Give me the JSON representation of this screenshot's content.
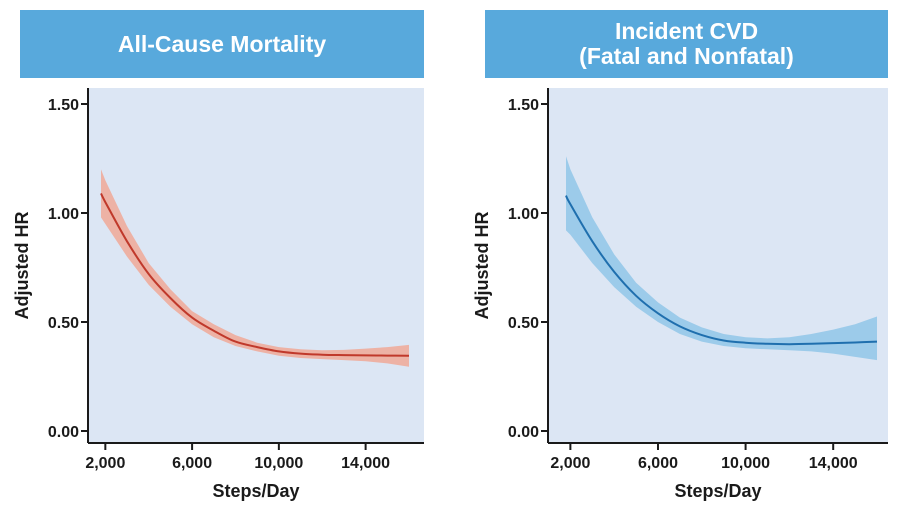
{
  "chart_data": [
    {
      "type": "line",
      "title": "All-Cause Mortality",
      "xlabel": "Steps/Day",
      "ylabel": "Adjusted HR",
      "xlim": [
        1200,
        16600
      ],
      "ylim": [
        0,
        1.5
      ],
      "xticks": [
        2000,
        6000,
        10000,
        14000
      ],
      "xtick_labels": [
        "2,000",
        "6,000",
        "10,000",
        "14,000"
      ],
      "yticks": [
        0,
        0.5,
        1.0,
        1.5
      ],
      "ytick_labels": [
        "0.00",
        "0.50",
        "1.00",
        "1.50"
      ],
      "series": [
        {
          "name": "All-Cause Mortality",
          "color": "#c0392b",
          "band_color": "#f0a896",
          "x": [
            1800,
            2000,
            3000,
            4000,
            5000,
            6000,
            7000,
            8000,
            9000,
            10000,
            11000,
            12000,
            13000,
            14000,
            15000,
            16000
          ],
          "y": [
            1.09,
            1.05,
            0.87,
            0.72,
            0.61,
            0.52,
            0.46,
            0.41,
            0.385,
            0.365,
            0.355,
            0.35,
            0.348,
            0.347,
            0.346,
            0.345
          ],
          "lower": [
            0.98,
            0.95,
            0.8,
            0.67,
            0.57,
            0.49,
            0.43,
            0.39,
            0.365,
            0.345,
            0.335,
            0.33,
            0.325,
            0.32,
            0.31,
            0.295
          ],
          "upper": [
            1.2,
            1.15,
            0.94,
            0.77,
            0.65,
            0.55,
            0.49,
            0.44,
            0.405,
            0.385,
            0.375,
            0.37,
            0.372,
            0.378,
            0.385,
            0.395
          ]
        }
      ]
    },
    {
      "type": "line",
      "title": "Incident CVD",
      "subtitle": "(Fatal and Nonfatal)",
      "xlabel": "Steps/Day",
      "ylabel": "Adjusted HR",
      "xlim": [
        1200,
        16600
      ],
      "ylim": [
        0,
        1.5
      ],
      "xticks": [
        2000,
        6000,
        10000,
        14000
      ],
      "xtick_labels": [
        "2,000",
        "6,000",
        "10,000",
        "14,000"
      ],
      "yticks": [
        0,
        0.5,
        1.0,
        1.5
      ],
      "ytick_labels": [
        "0.00",
        "0.50",
        "1.00",
        "1.50"
      ],
      "series": [
        {
          "name": "Incident CVD (Fatal and Nonfatal)",
          "color": "#1f6fae",
          "band_color": "#90c6e8",
          "x": [
            1800,
            2000,
            3000,
            4000,
            5000,
            6000,
            7000,
            8000,
            9000,
            10000,
            11000,
            12000,
            13000,
            14000,
            15000,
            16000
          ],
          "y": [
            1.08,
            1.04,
            0.87,
            0.73,
            0.62,
            0.54,
            0.48,
            0.44,
            0.415,
            0.405,
            0.4,
            0.398,
            0.4,
            0.403,
            0.406,
            0.41
          ],
          "lower": [
            0.92,
            0.9,
            0.77,
            0.66,
            0.57,
            0.5,
            0.445,
            0.41,
            0.39,
            0.38,
            0.375,
            0.37,
            0.365,
            0.355,
            0.34,
            0.325
          ],
          "upper": [
            1.26,
            1.2,
            0.98,
            0.81,
            0.68,
            0.59,
            0.52,
            0.475,
            0.445,
            0.43,
            0.425,
            0.43,
            0.445,
            0.465,
            0.49,
            0.525
          ]
        }
      ]
    }
  ]
}
